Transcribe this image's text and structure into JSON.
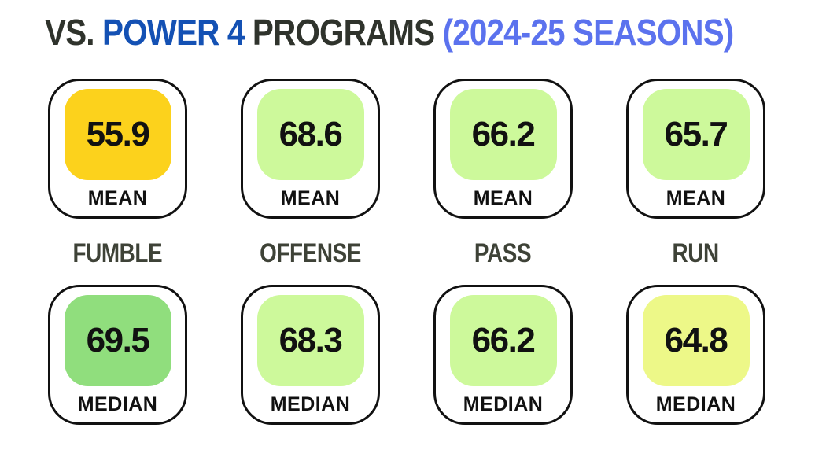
{
  "title": {
    "prefix": "VS.",
    "highlight": "POWER 4",
    "middle": "PROGRAMS",
    "suffix": "(2024-25 SEASONS)"
  },
  "colors": {
    "title_dark": "#2F332C",
    "title_blue": "#1451B4",
    "title_light_blue": "#5B72EE",
    "category_label": "#3E4237",
    "card_border": "#111111",
    "chip_yellow": "#FCD21C",
    "chip_light_green": "#CDF99B",
    "chip_medium_green": "#90DE7D",
    "chip_pale_yellow_green": "#EDF888"
  },
  "columns": [
    {
      "category": "FUMBLE",
      "mean": {
        "value": "55.9",
        "label": "MEAN",
        "color": "#FCD21C"
      },
      "median": {
        "value": "69.5",
        "label": "MEDIAN",
        "color": "#90DE7D"
      }
    },
    {
      "category": "OFFENSE",
      "mean": {
        "value": "68.6",
        "label": "MEAN",
        "color": "#CDF99B"
      },
      "median": {
        "value": "68.3",
        "label": "MEDIAN",
        "color": "#CDF99B"
      }
    },
    {
      "category": "PASS",
      "mean": {
        "value": "66.2",
        "label": "MEAN",
        "color": "#CDF99B"
      },
      "median": {
        "value": "66.2",
        "label": "MEDIAN",
        "color": "#CDF99B"
      }
    },
    {
      "category": "RUN",
      "mean": {
        "value": "65.7",
        "label": "MEAN",
        "color": "#CDF99B"
      },
      "median": {
        "value": "64.8",
        "label": "MEDIAN",
        "color": "#EDF888"
      }
    }
  ],
  "chart_data": {
    "type": "table",
    "title": "VS. POWER 4 PROGRAMS (2024-25 SEASONS)",
    "categories": [
      "FUMBLE",
      "OFFENSE",
      "PASS",
      "RUN"
    ],
    "series": [
      {
        "name": "MEAN",
        "values": [
          55.9,
          68.6,
          66.2,
          65.7
        ]
      },
      {
        "name": "MEDIAN",
        "values": [
          69.5,
          68.3,
          66.2,
          64.8
        ]
      }
    ],
    "legend_position": "none",
    "notes": "Stat-card infographic: top row = mean per category, bottom row = median per category; chip color encodes value (yellow=low, light green=mid, green=high)"
  }
}
